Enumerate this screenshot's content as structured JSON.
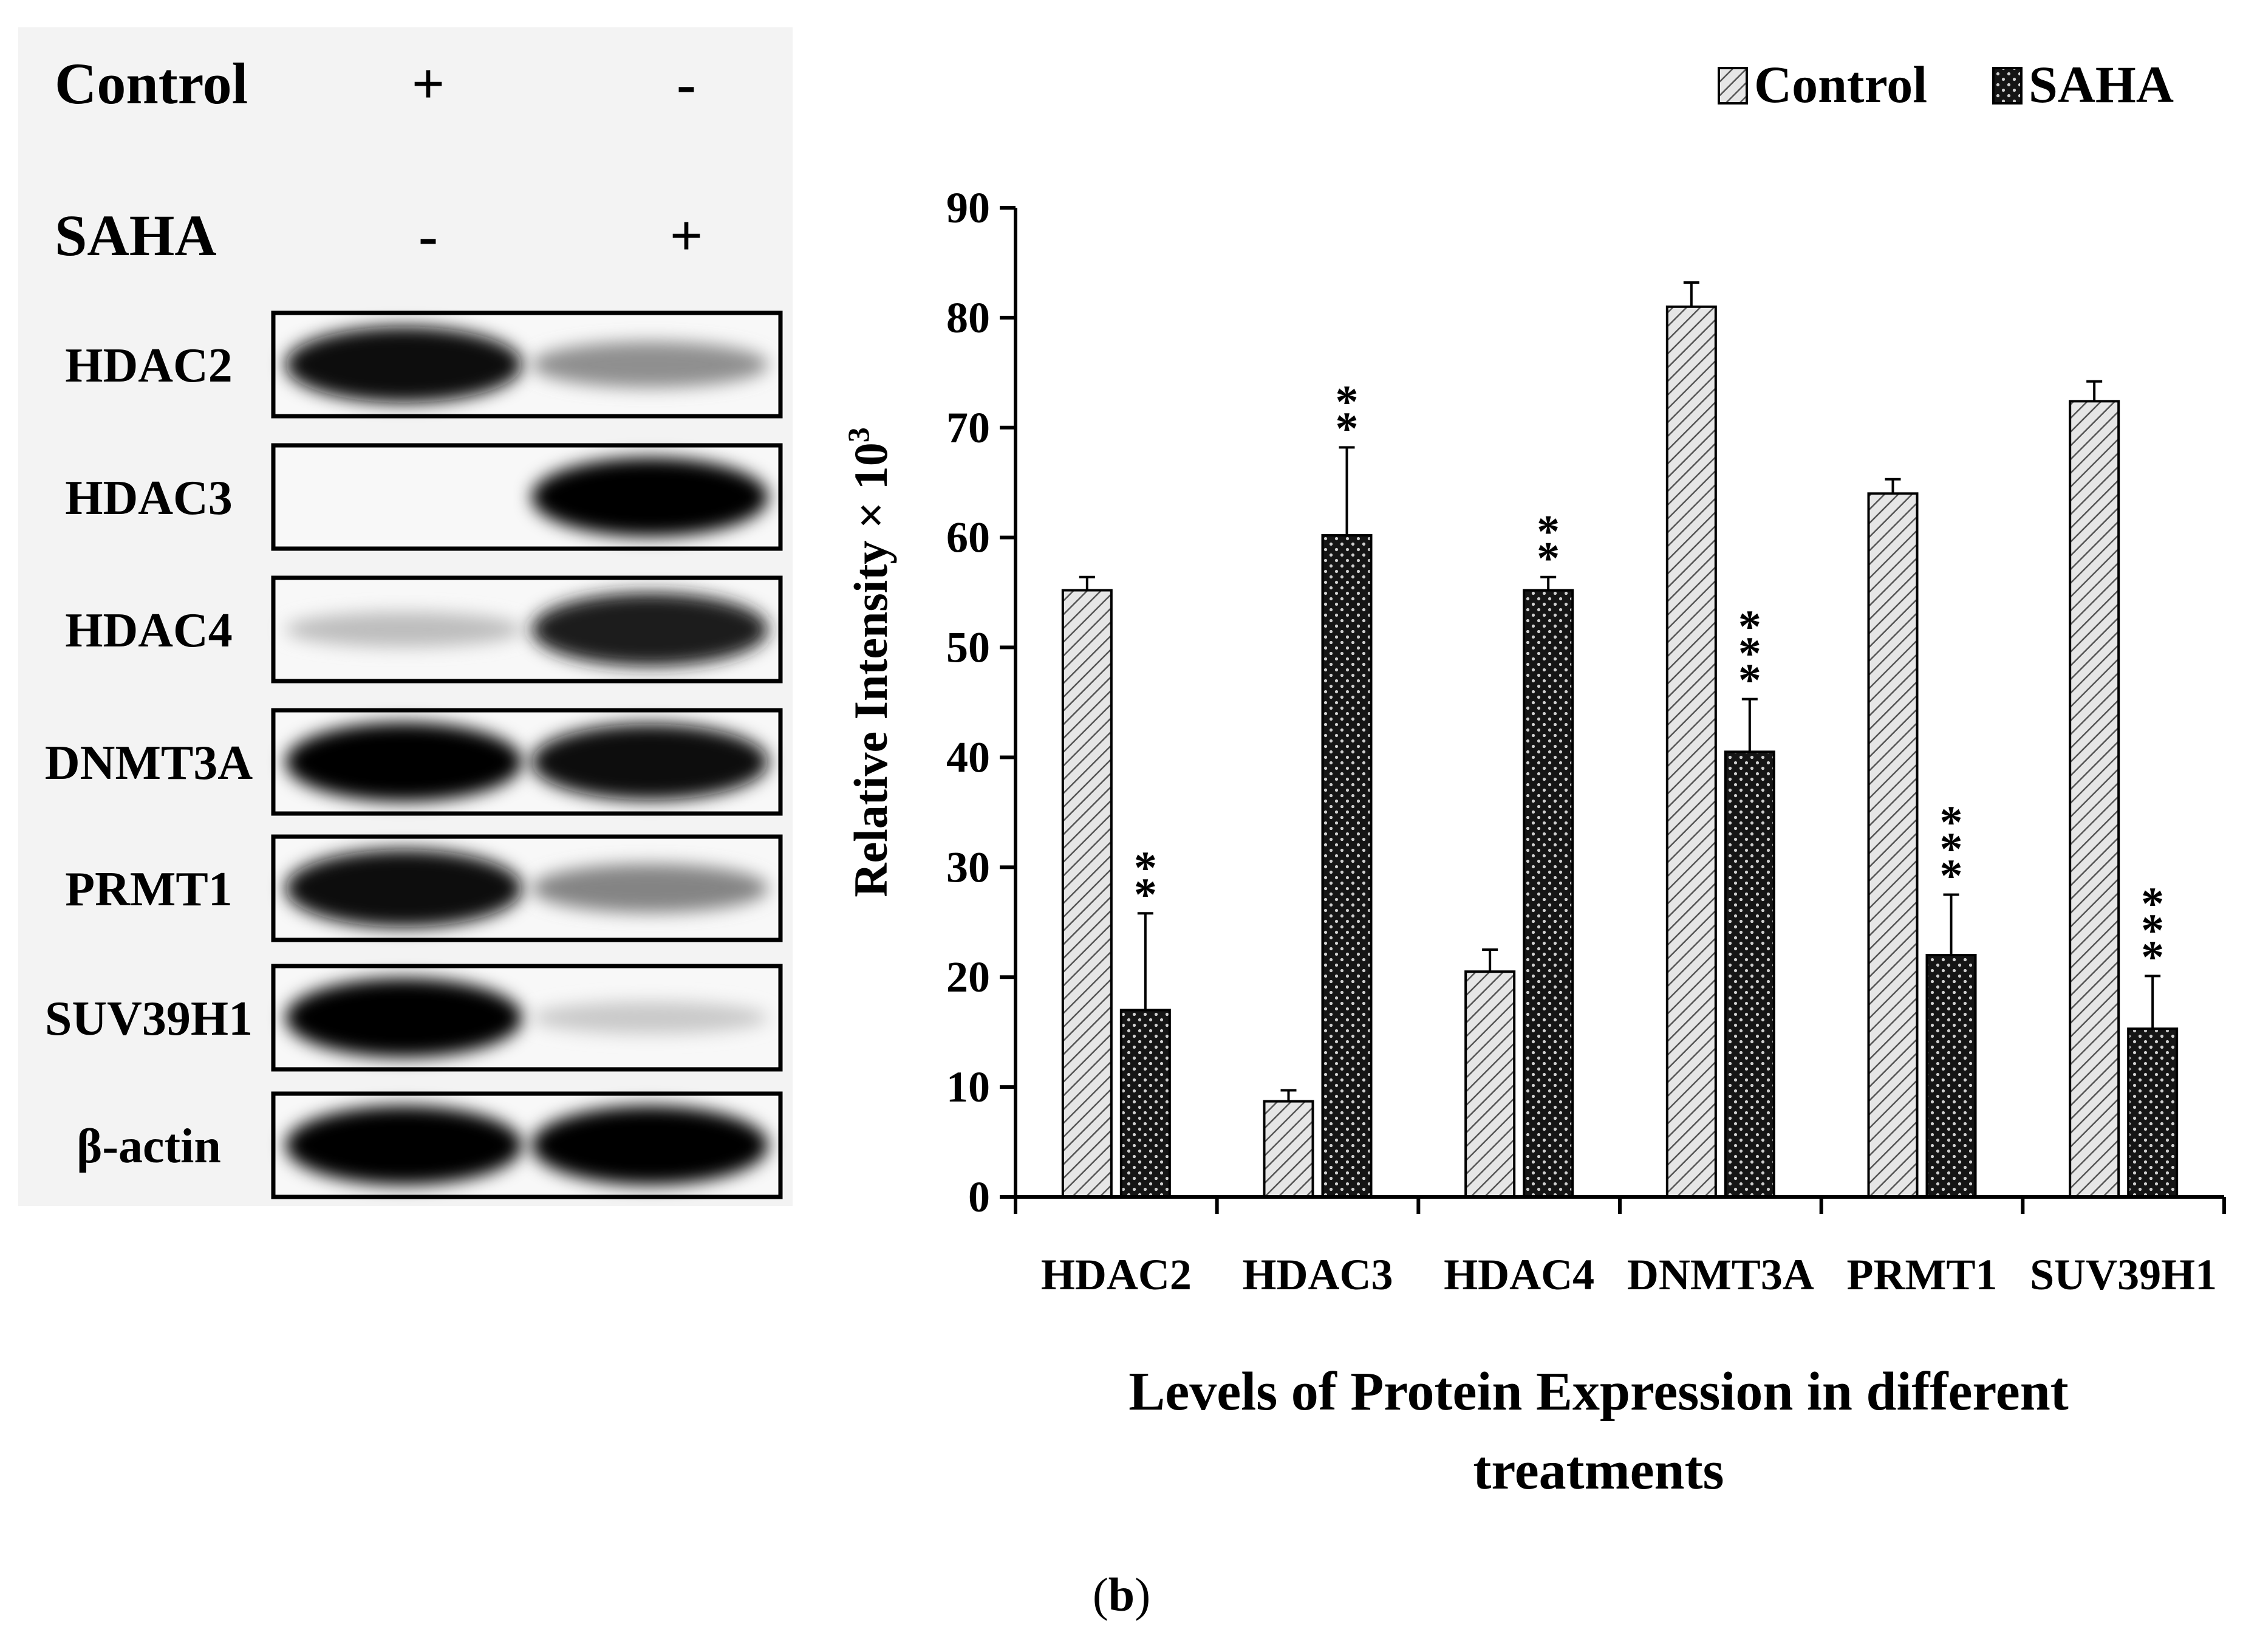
{
  "blot": {
    "treatments": [
      {
        "label": "Control",
        "lanes": [
          "+",
          "-"
        ]
      },
      {
        "label": "SAHA",
        "lanes": [
          "-",
          "+"
        ]
      }
    ],
    "bands": [
      {
        "label": "HDAC2",
        "lane1": 0.95,
        "lane2": 0.4
      },
      {
        "label": "HDAC3",
        "lane1": 0.0,
        "lane2": 1.0
      },
      {
        "label": "HDAC4",
        "lane1": 0.2,
        "lane2": 0.9
      },
      {
        "label": "DNMT3A",
        "lane1": 1.0,
        "lane2": 0.95
      },
      {
        "label": "PRMT1",
        "lane1": 0.98,
        "lane2": 0.45
      },
      {
        "label": "SUV39H1",
        "lane1": 1.0,
        "lane2": 0.15
      },
      {
        "label": "β-actin",
        "lane1": 1.0,
        "lane2": 1.0
      }
    ]
  },
  "chart_data": {
    "type": "bar",
    "title": "",
    "xlabel_lines": [
      "Levels of Protein Expression in different",
      "treatments"
    ],
    "ylabel": "Relative Intensity × 10",
    "ylabel_superscript": "3",
    "ylim": [
      0,
      90
    ],
    "yticks": [
      0,
      10,
      20,
      30,
      40,
      50,
      60,
      70,
      80,
      90
    ],
    "legend_position": "top-right",
    "categories": [
      "HDAC2",
      "HDAC3",
      "HDAC4",
      "DNMT3A",
      "PRMT1",
      "SUV39H1"
    ],
    "series": [
      {
        "name": "Control",
        "pattern": "diagonal-hatch",
        "color": "#d9d9d9",
        "values": [
          55.2,
          8.7,
          20.5,
          81.0,
          64.0,
          72.4
        ],
        "errors": [
          1.2,
          1.0,
          2.0,
          2.2,
          1.3,
          1.8
        ],
        "significance": [
          "",
          "",
          "",
          "",
          "",
          ""
        ]
      },
      {
        "name": "SAHA",
        "pattern": "crosshatch",
        "color": "#1a1a1a",
        "values": [
          17.0,
          60.2,
          55.2,
          40.5,
          22.0,
          15.3
        ],
        "errors": [
          8.8,
          8.0,
          1.2,
          4.8,
          5.5,
          4.8
        ],
        "significance": [
          "**",
          "**",
          "**",
          "***",
          "***",
          "***"
        ]
      }
    ]
  },
  "caption": {
    "open": "(",
    "letter": "b",
    "close": ")"
  }
}
